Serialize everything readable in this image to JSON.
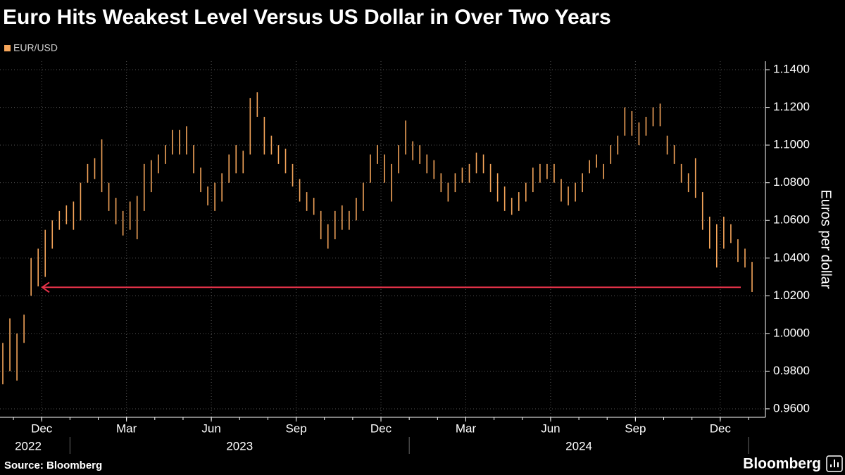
{
  "chart_data": {
    "type": "range",
    "title": "Euro Hits Weakest Level Versus US Dollar in Over Two Years",
    "y_label": "Euros per dollar",
    "source": "Source: Bloomberg",
    "brand": "Bloomberg",
    "x": [
      "2022-10",
      "2022-10",
      "2022-11",
      "2022-11",
      "2022-11",
      "2022-11",
      "2022-12",
      "2022-12",
      "2022-12",
      "2022-12",
      "2023-01",
      "2023-01",
      "2023-01",
      "2023-01",
      "2023-02",
      "2023-02",
      "2023-02",
      "2023-02",
      "2023-03",
      "2023-03",
      "2023-03",
      "2023-03",
      "2023-04",
      "2023-04",
      "2023-04",
      "2023-04",
      "2023-05",
      "2023-05",
      "2023-05",
      "2023-05",
      "2023-06",
      "2023-06",
      "2023-06",
      "2023-06",
      "2023-07",
      "2023-07",
      "2023-07",
      "2023-07",
      "2023-08",
      "2023-08",
      "2023-08",
      "2023-08",
      "2023-09",
      "2023-09",
      "2023-09",
      "2023-09",
      "2023-10",
      "2023-10",
      "2023-10",
      "2023-10",
      "2023-11",
      "2023-11",
      "2023-11",
      "2023-11",
      "2023-12",
      "2023-12",
      "2023-12",
      "2023-12",
      "2024-01",
      "2024-01",
      "2024-01",
      "2024-01",
      "2024-02",
      "2024-02",
      "2024-02",
      "2024-02",
      "2024-03",
      "2024-03",
      "2024-03",
      "2024-03",
      "2024-04",
      "2024-04",
      "2024-04",
      "2024-04",
      "2024-05",
      "2024-05",
      "2024-05",
      "2024-05",
      "2024-06",
      "2024-06",
      "2024-06",
      "2024-06",
      "2024-07",
      "2024-07",
      "2024-07",
      "2024-07",
      "2024-08",
      "2024-08",
      "2024-08",
      "2024-08",
      "2024-09",
      "2024-09",
      "2024-09",
      "2024-09",
      "2024-10",
      "2024-10",
      "2024-10",
      "2024-10",
      "2024-11",
      "2024-11",
      "2024-11",
      "2024-11",
      "2024-12",
      "2024-12",
      "2024-12",
      "2024-12",
      "2025-01"
    ],
    "series": [
      {
        "name": "EUR/USD",
        "color": "#f5a55a",
        "low": [
          0.973,
          0.98,
          0.975,
          0.995,
          1.02,
          1.025,
          1.03,
          1.045,
          1.055,
          1.058,
          1.055,
          1.06,
          1.08,
          1.082,
          1.075,
          1.065,
          1.058,
          1.052,
          1.055,
          1.05,
          1.065,
          1.075,
          1.085,
          1.09,
          1.095,
          1.095,
          1.095,
          1.085,
          1.075,
          1.068,
          1.065,
          1.07,
          1.08,
          1.085,
          1.085,
          1.095,
          1.115,
          1.095,
          1.095,
          1.09,
          1.085,
          1.078,
          1.07,
          1.065,
          1.063,
          1.05,
          1.045,
          1.05,
          1.055,
          1.055,
          1.06,
          1.065,
          1.08,
          1.09,
          1.08,
          1.07,
          1.085,
          1.095,
          1.092,
          1.09,
          1.085,
          1.082,
          1.075,
          1.07,
          1.075,
          1.08,
          1.08,
          1.085,
          1.085,
          1.075,
          1.07,
          1.065,
          1.063,
          1.065,
          1.07,
          1.075,
          1.08,
          1.082,
          1.08,
          1.07,
          1.068,
          1.07,
          1.075,
          1.085,
          1.088,
          1.082,
          1.09,
          1.095,
          1.105,
          1.105,
          1.1,
          1.105,
          1.11,
          1.11,
          1.095,
          1.09,
          1.08,
          1.075,
          1.072,
          1.055,
          1.045,
          1.035,
          1.045,
          1.048,
          1.038,
          1.035,
          1.022
        ],
        "high": [
          0.995,
          1.008,
          1.0,
          1.01,
          1.04,
          1.045,
          1.055,
          1.06,
          1.065,
          1.068,
          1.07,
          1.08,
          1.09,
          1.093,
          1.103,
          1.08,
          1.072,
          1.065,
          1.07,
          1.073,
          1.09,
          1.092,
          1.095,
          1.1,
          1.108,
          1.108,
          1.11,
          1.1,
          1.088,
          1.078,
          1.08,
          1.085,
          1.095,
          1.1,
          1.097,
          1.125,
          1.128,
          1.115,
          1.105,
          1.1,
          1.098,
          1.09,
          1.082,
          1.075,
          1.072,
          1.065,
          1.058,
          1.065,
          1.068,
          1.065,
          1.072,
          1.08,
          1.095,
          1.1,
          1.095,
          1.09,
          1.1,
          1.113,
          1.102,
          1.1,
          1.095,
          1.092,
          1.085,
          1.08,
          1.085,
          1.088,
          1.09,
          1.096,
          1.095,
          1.09,
          1.085,
          1.078,
          1.072,
          1.075,
          1.08,
          1.088,
          1.09,
          1.09,
          1.09,
          1.082,
          1.078,
          1.08,
          1.085,
          1.092,
          1.095,
          1.09,
          1.1,
          1.105,
          1.12,
          1.118,
          1.112,
          1.115,
          1.12,
          1.122,
          1.105,
          1.1,
          1.09,
          1.085,
          1.093,
          1.075,
          1.062,
          1.058,
          1.062,
          1.058,
          1.05,
          1.045,
          1.038
        ]
      }
    ],
    "month_ticks": [
      {
        "value": "2022-12",
        "label": "Dec"
      },
      {
        "value": "2023-03",
        "label": "Mar"
      },
      {
        "value": "2023-06",
        "label": "Jun"
      },
      {
        "value": "2023-09",
        "label": "Sep"
      },
      {
        "value": "2023-12",
        "label": "Dec"
      },
      {
        "value": "2024-03",
        "label": "Mar"
      },
      {
        "value": "2024-06",
        "label": "Jun"
      },
      {
        "value": "2024-09",
        "label": "Sep"
      },
      {
        "value": "2024-12",
        "label": "Dec"
      }
    ],
    "year_labels": [
      "2022",
      "2023",
      "2024"
    ],
    "ylim": [
      0.9555,
      1.1445
    ],
    "yticks": [
      {
        "value": 0.96,
        "label": "0.9600"
      },
      {
        "value": 0.98,
        "label": "0.9800"
      },
      {
        "value": 1.0,
        "label": "1.0000"
      },
      {
        "value": 1.02,
        "label": "1.0200"
      },
      {
        "value": 1.04,
        "label": "1.0400"
      },
      {
        "value": 1.06,
        "label": "1.0600"
      },
      {
        "value": 1.08,
        "label": "1.0800"
      },
      {
        "value": 1.1,
        "label": "1.1000"
      },
      {
        "value": 1.12,
        "label": "1.1200"
      },
      {
        "value": 1.14,
        "label": "1.1400"
      }
    ],
    "reference_line": {
      "value": 1.0245,
      "color": "#e8334a"
    },
    "grid": true
  }
}
